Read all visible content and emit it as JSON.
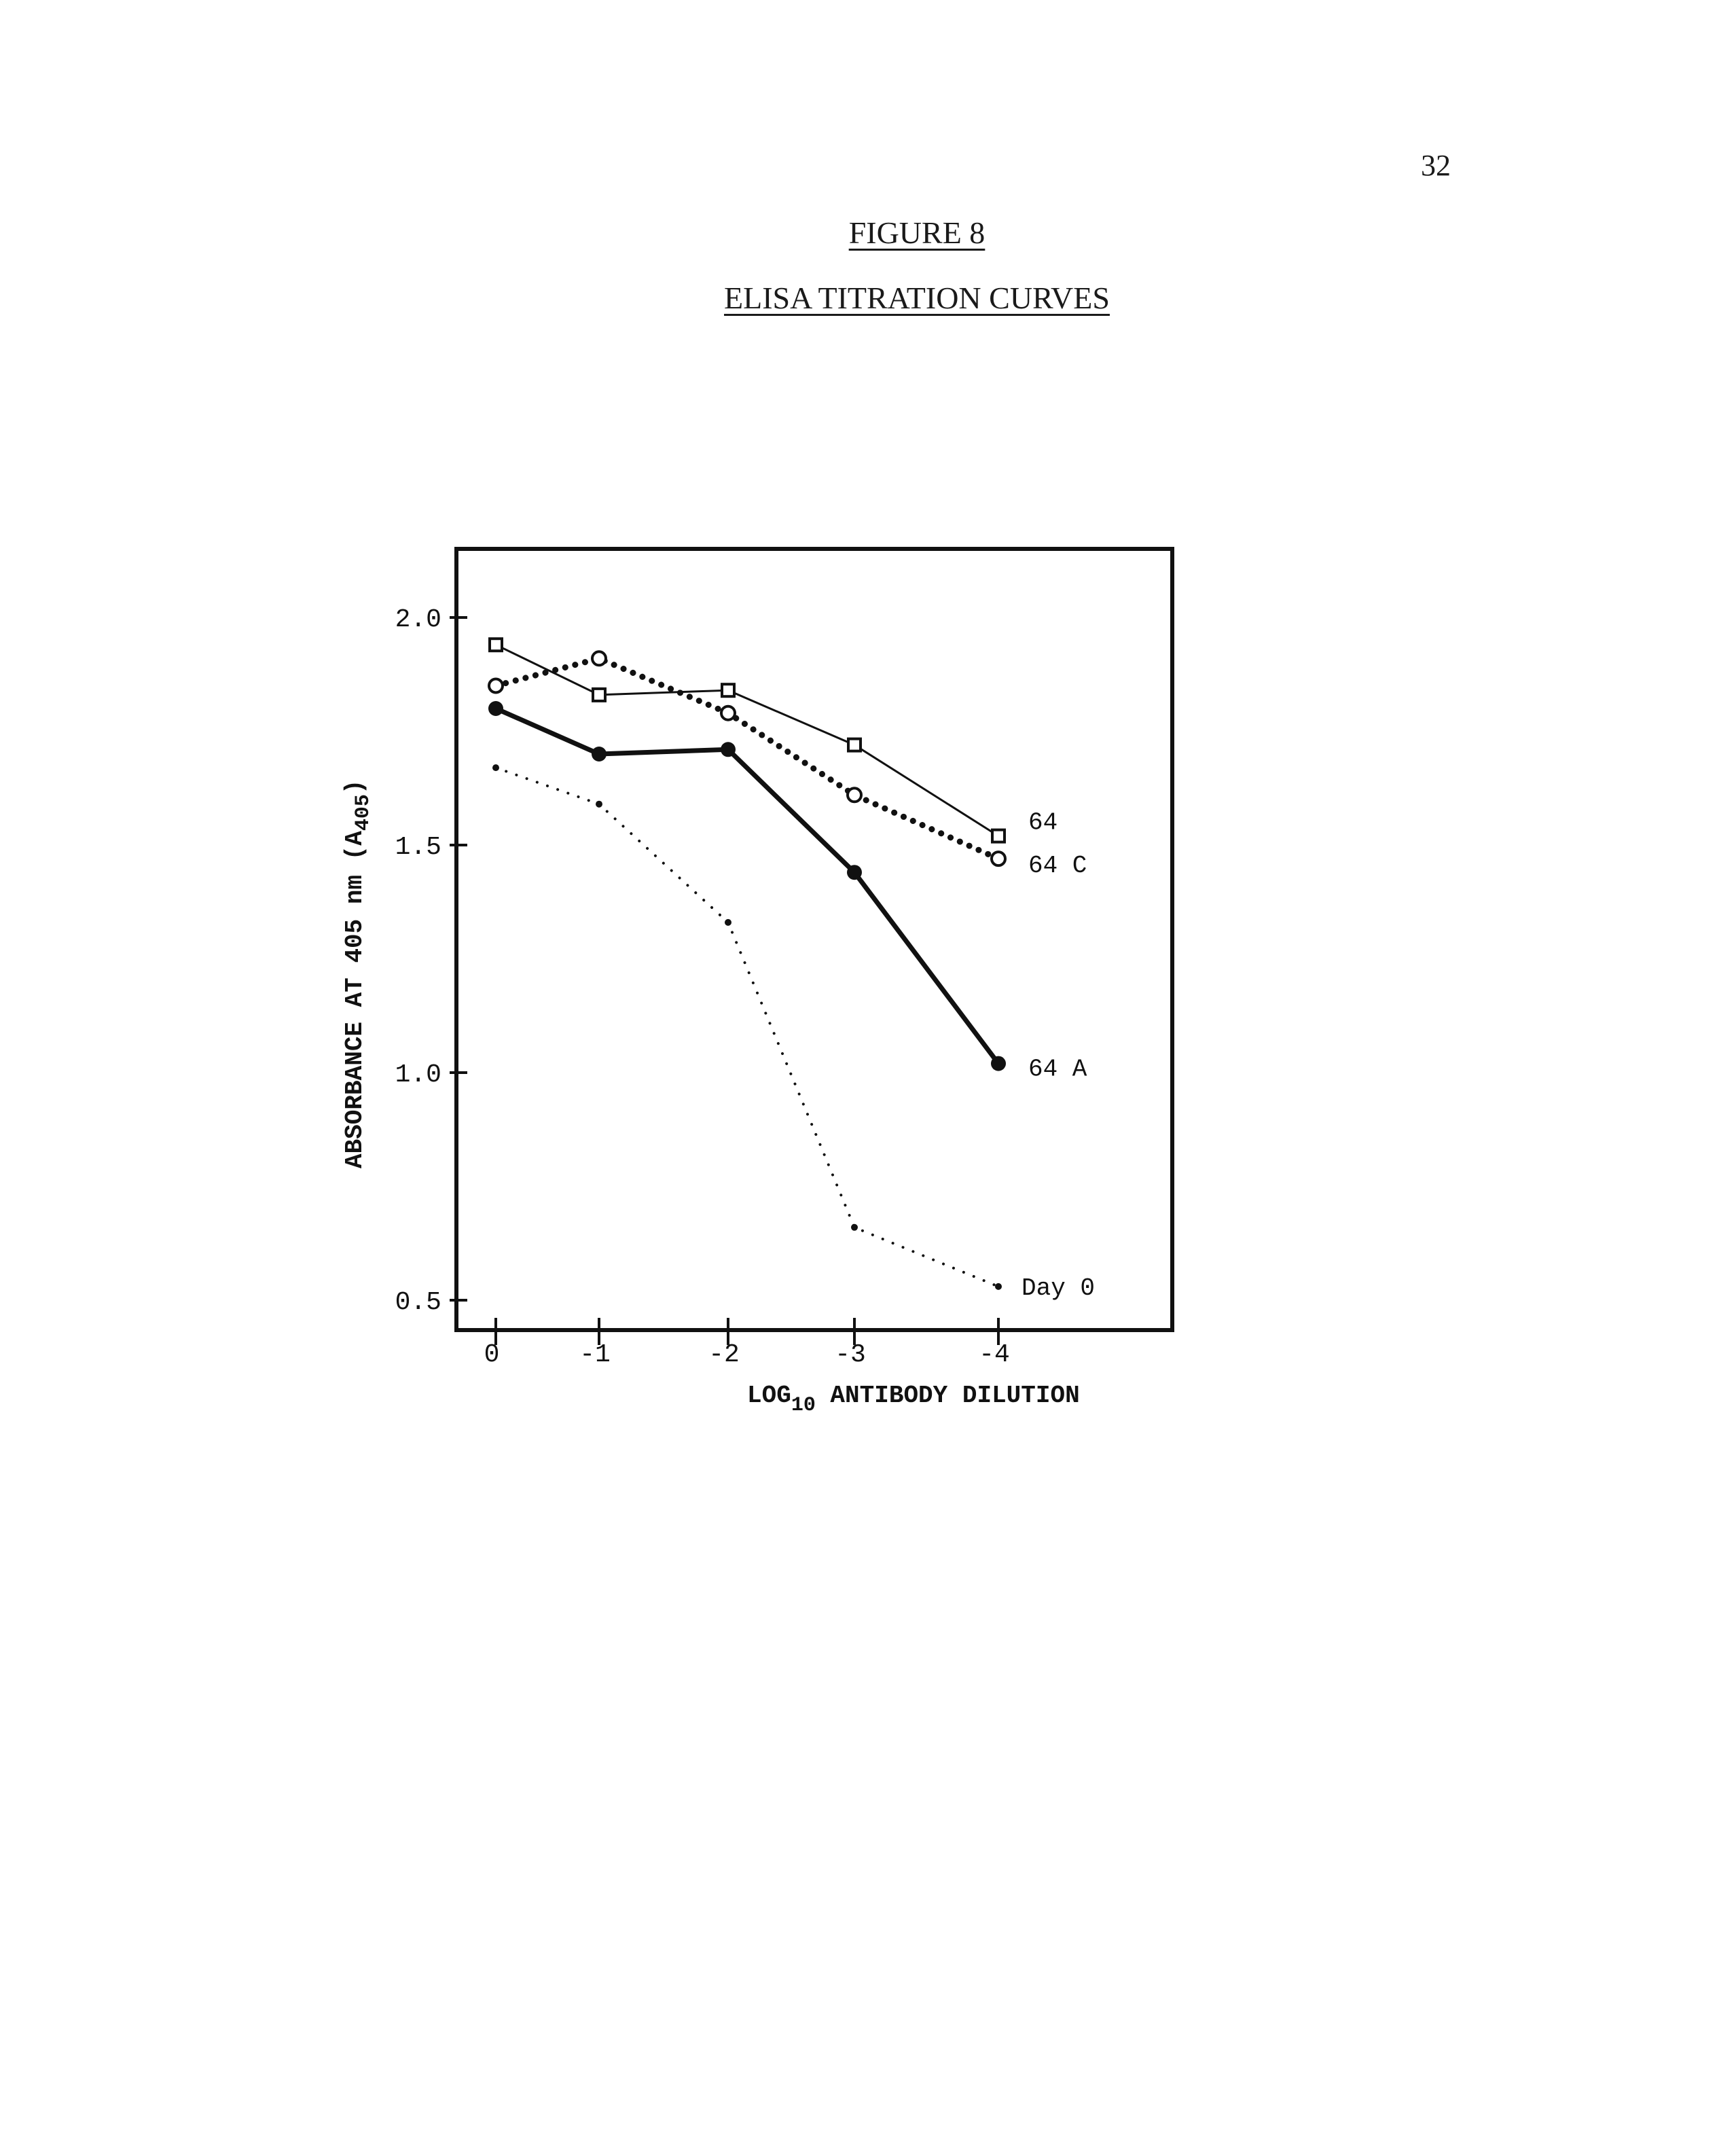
{
  "page": {
    "number": "32",
    "figure_title": "FIGURE 8",
    "figure_subtitle": "ELISA TITRATION CURVES"
  },
  "chart_data": {
    "type": "line",
    "title": "ELISA TITRATION CURVES",
    "xlabel": "LOG10 ANTIBODY DILUTION",
    "xlabel_parts": {
      "prefix": "LOG",
      "subscript": "10",
      "suffix": " ANTIBODY DILUTION"
    },
    "ylabel": "ABSORBANCE AT 405 nm (A405)",
    "ylabel_parts": {
      "prefix": "ABSORBANCE AT 405 nm (A",
      "subscript": "405",
      "suffix": ")"
    },
    "x_ticks": [
      "0",
      "-1",
      "-2",
      "-3",
      "-4"
    ],
    "y_ticks": [
      "2.0",
      "1.5",
      "1.0",
      "0.5"
    ],
    "ylim": [
      0.5,
      2.15
    ],
    "x": [
      0,
      -1,
      -2,
      -3,
      -4
    ],
    "grid": false,
    "legend": "labels at line ends (right)",
    "series": [
      {
        "name": "64",
        "marker": "open-square",
        "line": "thin-solid",
        "values": [
          1.94,
          1.83,
          1.84,
          1.72,
          1.52
        ]
      },
      {
        "name": "64 C",
        "marker": "open-circle",
        "line": "heavy-dotted",
        "values": [
          1.85,
          1.91,
          1.79,
          1.61,
          1.47
        ]
      },
      {
        "name": "64 A",
        "marker": "filled-circle",
        "line": "thick-solid",
        "values": [
          1.8,
          1.7,
          1.71,
          1.44,
          1.02
        ]
      },
      {
        "name": "Day 0",
        "marker": "small-dot",
        "line": "fine-dotted",
        "values": [
          1.67,
          1.59,
          1.33,
          0.66,
          0.53
        ]
      }
    ]
  }
}
